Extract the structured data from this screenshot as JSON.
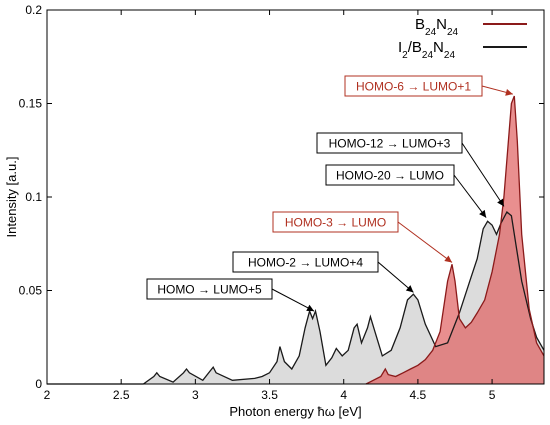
{
  "chart_data": {
    "type": "area",
    "xlabel": "Photon energy ħω [eV]",
    "ylabel": "Intensity [a.u.]",
    "xlim": [
      2.0,
      5.35
    ],
    "ylim": [
      0,
      0.2
    ],
    "xticks": [
      "2",
      "2.5",
      "3",
      "3.5",
      "4",
      "4.5",
      "5"
    ],
    "yticks": [
      "0",
      "0.05",
      "0.1",
      "0.15",
      "0.2"
    ],
    "legend_position": "top-right",
    "series": [
      {
        "name": "B24N24",
        "name_base": "B",
        "name_sub1": "24",
        "name_mid": "N",
        "name_sub2": "24",
        "line_color": "#8b1a1a",
        "fill_color": "#e06060",
        "x": [
          4.15,
          4.25,
          4.28,
          4.3,
          4.35,
          4.4,
          4.45,
          4.5,
          4.55,
          4.6,
          4.65,
          4.7,
          4.73,
          4.75,
          4.78,
          4.82,
          4.86,
          4.9,
          4.95,
          5.0,
          5.05,
          5.08,
          5.11,
          5.13,
          5.15,
          5.17,
          5.2,
          5.25,
          5.3,
          5.35
        ],
        "y": [
          0.0,
          0.004,
          0.008,
          0.005,
          0.004,
          0.006,
          0.008,
          0.01,
          0.013,
          0.018,
          0.028,
          0.055,
          0.064,
          0.055,
          0.035,
          0.03,
          0.033,
          0.038,
          0.045,
          0.06,
          0.08,
          0.1,
          0.13,
          0.15,
          0.154,
          0.13,
          0.08,
          0.04,
          0.022,
          0.015
        ]
      },
      {
        "name": "I2/B24N24",
        "name_base": "I",
        "name_sub0": "2",
        "name_slash": "/B",
        "name_sub1": "24",
        "name_mid": "N",
        "name_sub2": "24",
        "line_color": "#1a1a1a",
        "fill_color": "#d8d8d8",
        "x": [
          2.0,
          2.65,
          2.72,
          2.74,
          2.76,
          2.85,
          2.92,
          2.94,
          2.96,
          3.05,
          3.1,
          3.12,
          3.14,
          3.25,
          3.4,
          3.45,
          3.5,
          3.55,
          3.57,
          3.6,
          3.65,
          3.7,
          3.74,
          3.77,
          3.79,
          3.81,
          3.84,
          3.88,
          3.92,
          3.95,
          3.99,
          4.03,
          4.07,
          4.09,
          4.12,
          4.16,
          4.18,
          4.21,
          4.26,
          4.32,
          4.38,
          4.43,
          4.47,
          4.5,
          4.55,
          4.62,
          4.7,
          4.78,
          4.85,
          4.9,
          4.94,
          4.97,
          5.0,
          5.03,
          5.06,
          5.1,
          5.13,
          5.16,
          5.2,
          5.26,
          5.3,
          5.35
        ],
        "y": [
          0.0,
          0.0,
          0.004,
          0.006,
          0.004,
          0.001,
          0.006,
          0.008,
          0.006,
          0.002,
          0.007,
          0.009,
          0.006,
          0.002,
          0.003,
          0.004,
          0.006,
          0.012,
          0.02,
          0.012,
          0.008,
          0.015,
          0.03,
          0.039,
          0.035,
          0.039,
          0.028,
          0.01,
          0.014,
          0.019,
          0.015,
          0.018,
          0.03,
          0.032,
          0.022,
          0.03,
          0.036,
          0.028,
          0.015,
          0.018,
          0.03,
          0.045,
          0.048,
          0.045,
          0.032,
          0.02,
          0.022,
          0.038,
          0.055,
          0.067,
          0.083,
          0.087,
          0.085,
          0.08,
          0.086,
          0.092,
          0.09,
          0.075,
          0.055,
          0.035,
          0.025,
          0.018
        ]
      }
    ],
    "annotations": [
      {
        "text": "HOMO → LUMO+5",
        "color": "#000000",
        "tx": 3.8,
        "ty": 0.039
      },
      {
        "text": "HOMO-2 → LUMO+4",
        "color": "#000000",
        "tx": 4.47,
        "ty": 0.049
      },
      {
        "text": "HOMO-3 → LUMO",
        "color": "#b03020",
        "tx": 4.73,
        "ty": 0.065
      },
      {
        "text": "HOMO-20 → LUMO",
        "color": "#000000",
        "tx": 4.96,
        "ty": 0.089
      },
      {
        "text": "HOMO-12 → LUMO+3",
        "color": "#000000",
        "tx": 5.08,
        "ty": 0.095
      },
      {
        "text": "HOMO-6 → LUMO+1",
        "color": "#b03020",
        "tx": 5.14,
        "ty": 0.155
      }
    ]
  }
}
